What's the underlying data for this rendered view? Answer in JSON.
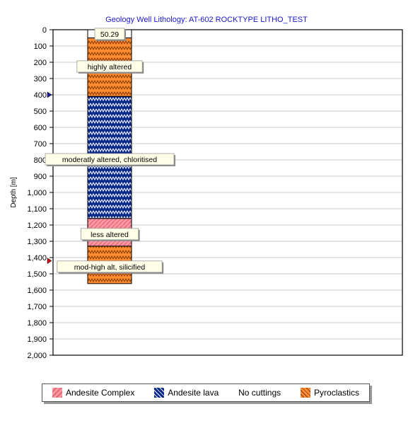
{
  "chart_data": {
    "type": "well-lithology-log",
    "title": "Geology Well Lithology:  AT-602 ROCKTYPE LITHO_TEST",
    "ylabel": "Depth [m]",
    "ylim": [
      0,
      2000
    ],
    "y_ticks": [
      "0",
      "100",
      "200",
      "300",
      "400",
      "500",
      "600",
      "700",
      "800",
      "900",
      "1,000",
      "1,100",
      "1,200",
      "1,300",
      "1,400",
      "1,500",
      "1,600",
      "1,700",
      "1,800",
      "1,900",
      "2,000"
    ],
    "y_tick_values": [
      0,
      100,
      200,
      300,
      400,
      500,
      600,
      700,
      800,
      900,
      1000,
      1100,
      1200,
      1300,
      1400,
      1500,
      1600,
      1700,
      1800,
      1900,
      2000
    ],
    "grid": true,
    "intervals": [
      {
        "top": 0,
        "bottom": 50.29,
        "lithology": "No cuttings"
      },
      {
        "top": 50.29,
        "bottom": 410,
        "lithology": "Pyroclastics"
      },
      {
        "top": 410,
        "bottom": 1160,
        "lithology": "Andesite lava"
      },
      {
        "top": 1160,
        "bottom": 1330,
        "lithology": "Andesite Complex"
      },
      {
        "top": 1330,
        "bottom": 1560,
        "lithology": "Pyroclastics"
      }
    ],
    "annotations": [
      {
        "text": "50.29",
        "depth": 30
      },
      {
        "text": "highly altered",
        "depth": 230
      },
      {
        "text": "moderatly altered, chloritised",
        "depth": 800
      },
      {
        "text": "less altered",
        "depth": 1260
      },
      {
        "text": "mod-high alt, silicified",
        "depth": 1460
      }
    ],
    "markers": [
      {
        "depth": 400,
        "color": "#1a1a9a"
      },
      {
        "depth": 1420,
        "color": "#cc1111"
      }
    ],
    "legend": [
      {
        "name": "Andesite Complex",
        "fill": "#ff99aa",
        "pattern": "#e06d6d"
      },
      {
        "name": "Andesite lava",
        "fill": "#0a2a8a",
        "pattern": "#ffffff"
      },
      {
        "name": "No cuttings",
        "fill": "none",
        "pattern": "none"
      },
      {
        "name": "Pyroclastics",
        "fill": "#ff8c33",
        "pattern": "#8a3a00"
      }
    ],
    "legend_position": "bottom"
  }
}
